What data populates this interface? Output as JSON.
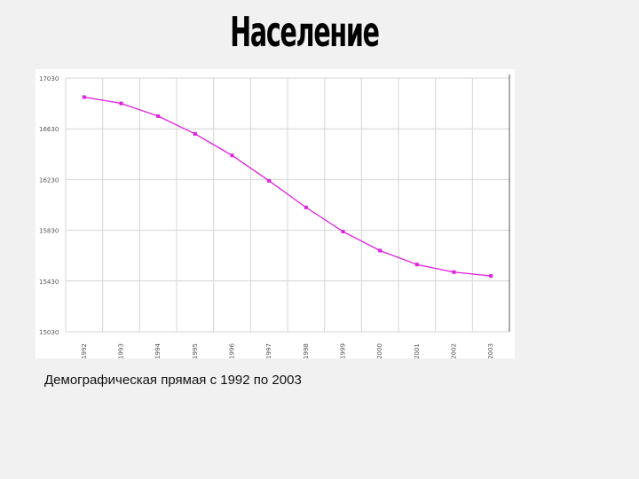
{
  "slide": {
    "title": "Население",
    "caption": "Демографическая прямая с 1992 по 2003"
  },
  "colors": {
    "series": "#e020e0",
    "grid": "#d4d4d4",
    "background": "#f1f1f1"
  },
  "chart_data": {
    "type": "line",
    "title": "",
    "xlabel": "",
    "ylabel": "",
    "categories": [
      "1992",
      "1993",
      "1994",
      "1995",
      "1996",
      "1997",
      "1998",
      "1999",
      "2000",
      "2001",
      "2002",
      "2003"
    ],
    "yticks": [
      "17030",
      "16630",
      "16230",
      "15830",
      "15430",
      "15030"
    ],
    "ylim": [
      15030,
      17030
    ],
    "series": [
      {
        "values": [
          16880,
          16830,
          16730,
          16590,
          16420,
          16220,
          16010,
          15820,
          15670,
          15560,
          15500,
          15470
        ]
      }
    ],
    "grid": true,
    "legend": "none"
  }
}
